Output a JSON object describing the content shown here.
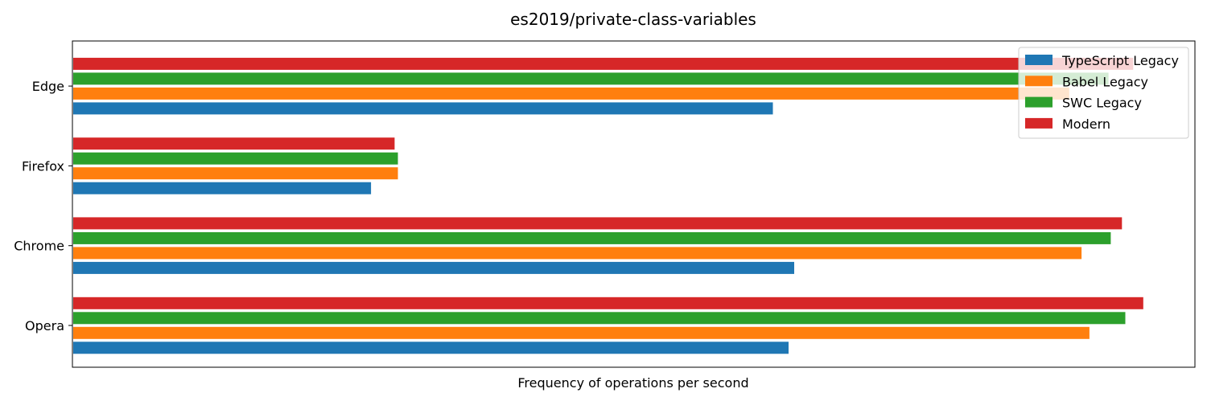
{
  "chart_data": {
    "type": "bar",
    "orientation": "horizontal",
    "title": "es2019/private-class-variables",
    "xlabel": "Frequency of operations per second",
    "ylabel": "",
    "x_ticks_shown": false,
    "categories": [
      "Opera",
      "Chrome",
      "Firefox",
      "Edge"
    ],
    "xlim": [
      0,
      100
    ],
    "grid": false,
    "legend_position": "top-right",
    "series": [
      {
        "name": "TypeScript Legacy",
        "color": "#1f77b4",
        "values": [
          63.8,
          64.3,
          26.6,
          62.4
        ]
      },
      {
        "name": "Babel Legacy",
        "color": "#ff7f0e",
        "values": [
          90.6,
          89.9,
          29.0,
          88.8
        ]
      },
      {
        "name": "SWC Legacy",
        "color": "#2ca02c",
        "values": [
          93.8,
          92.5,
          29.0,
          92.3
        ]
      },
      {
        "name": "Modern",
        "color": "#d62728",
        "values": [
          95.4,
          93.5,
          28.7,
          94.5
        ]
      }
    ]
  }
}
